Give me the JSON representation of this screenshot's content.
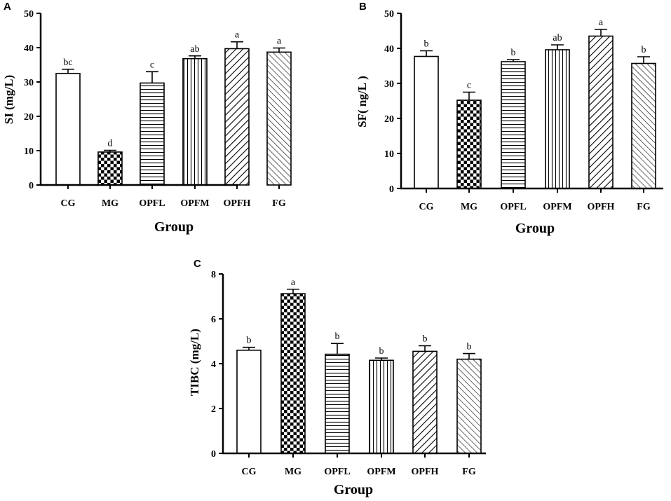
{
  "chart_data": [
    {
      "type": "bar",
      "panel": "A",
      "categories": [
        "CG",
        "MG",
        "OPFL",
        "OPFM",
        "OPFH",
        "FG"
      ],
      "values": [
        32.5,
        9.6,
        29.7,
        36.8,
        39.7,
        38.7
      ],
      "errors": [
        1.2,
        0.5,
        3.3,
        0.8,
        2.0,
        1.2
      ],
      "letters": [
        "bc",
        "d",
        "c",
        "ab",
        "a",
        "a"
      ],
      "ylim": [
        0,
        50
      ],
      "yticks": [
        "0",
        "10",
        "20",
        "30",
        "40",
        "50"
      ],
      "xlabel": "Group",
      "ylabel": "SI (mg/L)"
    },
    {
      "type": "bar",
      "panel": "B",
      "categories": [
        "CG",
        "MG",
        "OPFL",
        "OPFM",
        "OPFH",
        "FG"
      ],
      "values": [
        37.7,
        25.2,
        36.2,
        39.6,
        43.5,
        35.7
      ],
      "errors": [
        1.6,
        2.3,
        0.6,
        1.4,
        1.9,
        1.9
      ],
      "letters": [
        "b",
        "c",
        "b",
        "ab",
        "a",
        "b"
      ],
      "ylim": [
        0,
        50
      ],
      "yticks": [
        "0",
        "10",
        "20",
        "30",
        "40",
        "50"
      ],
      "xlabel": "Group",
      "ylabel": "SF( ng/L )"
    },
    {
      "type": "bar",
      "panel": "C",
      "categories": [
        "CG",
        "MG",
        "OPFL",
        "OPFM",
        "OPFH",
        "FG"
      ],
      "values": [
        4.6,
        7.12,
        4.42,
        4.15,
        4.55,
        4.2
      ],
      "errors": [
        0.13,
        0.2,
        0.48,
        0.1,
        0.25,
        0.25
      ],
      "letters": [
        "b",
        "a",
        "b",
        "b",
        "b",
        "b"
      ],
      "ylim": [
        0,
        8
      ],
      "yticks": [
        "0",
        "2",
        "4",
        "6",
        "8"
      ],
      "xlabel": "Group",
      "ylabel": "TIBC (mg/L)"
    }
  ]
}
